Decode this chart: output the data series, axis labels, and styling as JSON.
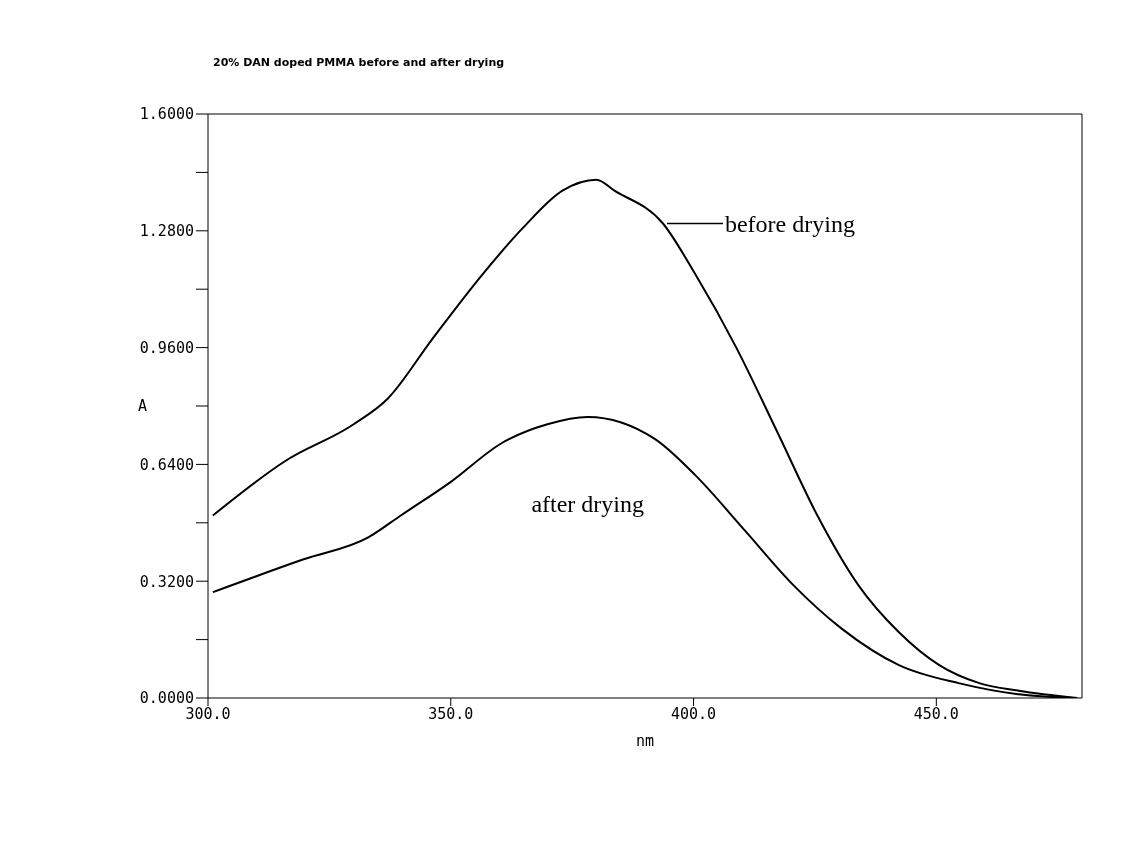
{
  "chart_data": {
    "type": "line",
    "title": "20% DAN doped PMMA before and after drying",
    "xlabel": "nm",
    "ylabel": "A",
    "xlim": [
      300,
      480
    ],
    "xticks": [
      {
        "value": 300,
        "label": "300.0"
      },
      {
        "value": 350,
        "label": "350.0"
      },
      {
        "value": 400,
        "label": "400.0"
      },
      {
        "value": 450,
        "label": "450.0"
      }
    ],
    "ylim": [
      0,
      1.6
    ],
    "yticks": [
      {
        "value": 0,
        "label": "0.0000"
      },
      {
        "value": 0.16,
        "label": null
      },
      {
        "value": 0.32,
        "label": "0.3200"
      },
      {
        "value": 0.48,
        "label": null
      },
      {
        "value": 0.64,
        "label": "0.6400"
      },
      {
        "value": 0.8,
        "label": null
      },
      {
        "value": 0.96,
        "label": "0.9600"
      },
      {
        "value": 1.12,
        "label": null
      },
      {
        "value": 1.28,
        "label": "1.2800"
      },
      {
        "value": 1.44,
        "label": null
      },
      {
        "value": 1.6,
        "label": "1.6000"
      }
    ],
    "series": [
      {
        "name": "before drying",
        "color": "#000000",
        "x": [
          301,
          316,
          330,
          337,
          346,
          356.5,
          365,
          373,
          380,
          383.7,
          393.7,
          400.4,
          408.8,
          417.2,
          425.5,
          433.9,
          442.3,
          450.6,
          459,
          467,
          479
        ],
        "values": [
          0.5,
          0.65,
          0.75,
          0.82,
          0.98,
          1.16,
          1.29,
          1.39,
          1.42,
          1.39,
          1.3,
          1.16,
          0.96,
          0.73,
          0.5,
          0.31,
          0.18,
          0.09,
          0.04,
          0.02,
          0
        ]
      },
      {
        "name": "after drying",
        "color": "#000000",
        "x": [
          301,
          319.7,
          333,
          339.7,
          349.8,
          360.7,
          369.9,
          378.2,
          392,
          400.4,
          410.5,
          420.5,
          430.5,
          442.3,
          454.8,
          467,
          478
        ],
        "values": [
          0.29,
          0.38,
          0.44,
          0.5,
          0.59,
          0.7,
          0.75,
          0.77,
          0.71,
          0.61,
          0.46,
          0.31,
          0.19,
          0.09,
          0.04,
          0.01,
          0
        ]
      }
    ]
  }
}
